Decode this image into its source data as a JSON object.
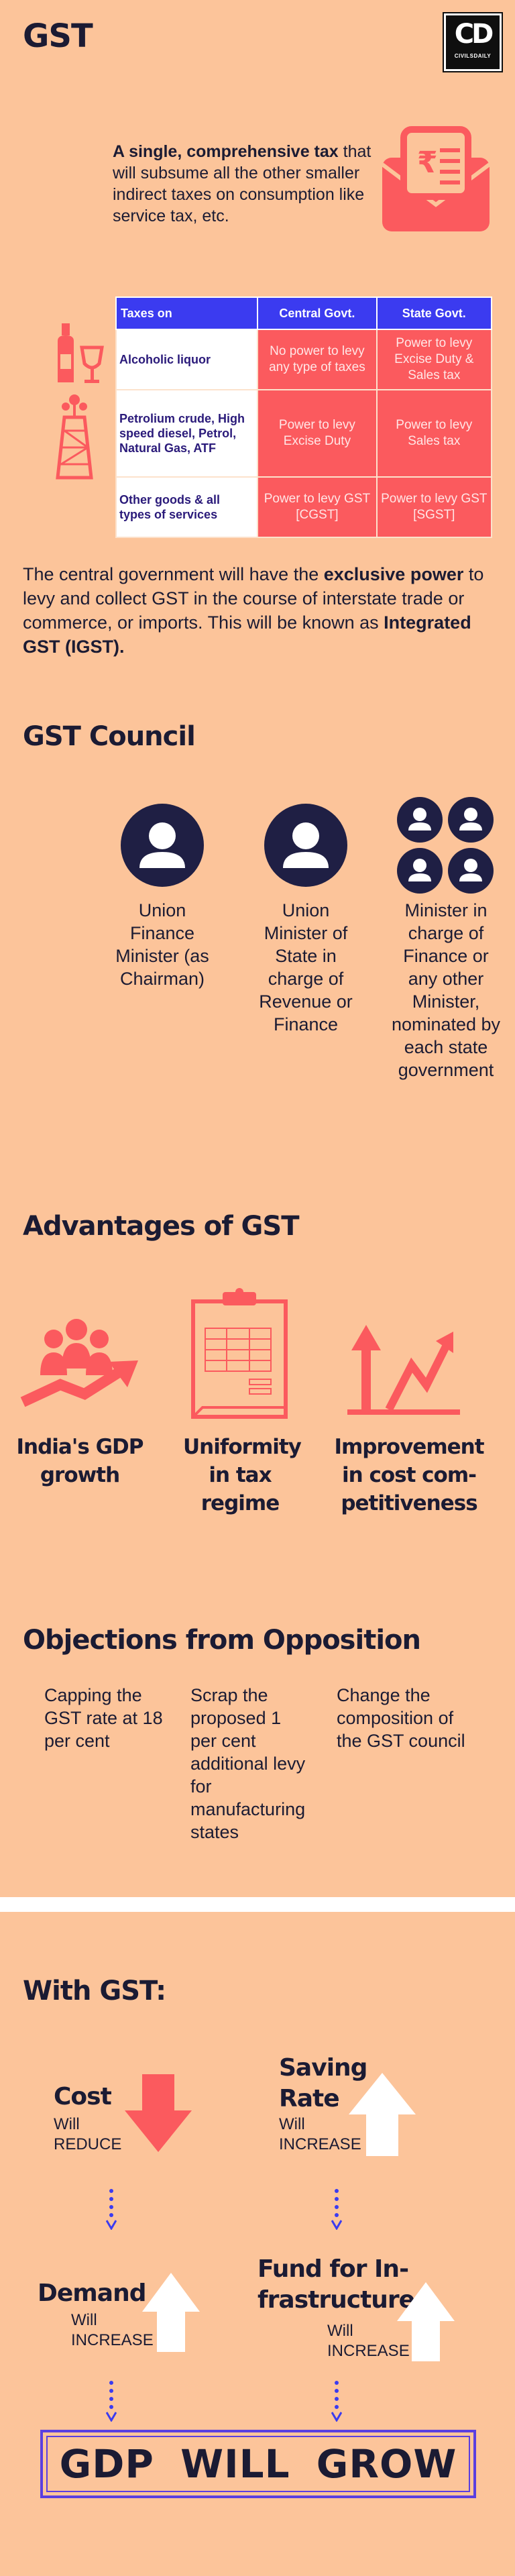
{
  "header": {
    "title": "GST",
    "logo_text": "CD",
    "logo_subtext": "CIVILSDAILY"
  },
  "intro": {
    "bold": "A single, comprehensive tax",
    "rest": " that will subsume all the other smaller indirect taxes on consumption like service tax, etc."
  },
  "tax_table": {
    "headers": [
      "Taxes on",
      "Central Govt.",
      "State Govt."
    ],
    "rows": [
      {
        "label": "Alcoholic liquor",
        "central": "No power to levy any type of taxes",
        "state": "Power to levy Excise Duty & Sales tax"
      },
      {
        "label": "Petrolium crude, High speed diesel, Petrol, Natural Gas, ATF",
        "central": "Power to levy Excise Duty",
        "state": "Power to levy Sales tax"
      },
      {
        "label": "Other goods & all types of services",
        "central": "Power to levy GST [CGST]",
        "state": "Power to levy GST [SGST]"
      }
    ]
  },
  "igst": {
    "part1": "The central government will have the ",
    "bold1": "exclusive power",
    "part2": " to levy and collect GST in the course of interstate trade or commerce, or imports. This will be known as ",
    "bold2": "Integrated GST (IGST)."
  },
  "council": {
    "title": "GST Council",
    "members": [
      "Union Finance Minister (as Chairman)",
      "Union Minister of State in charge of Revenue or Finance",
      "Minister in charge of Finance or any other Minister, nominated by each state government"
    ]
  },
  "advantages": {
    "title": "Advantages of GST",
    "items": [
      "India's GDP growth",
      "Uniformity in tax regime",
      "Improvement in cost com-petitiveness"
    ]
  },
  "objections": {
    "title": "Objections from Opposition",
    "items": [
      "Capping the GST rate at 18 per cent",
      "Scrap the proposed 1 per cent additional levy for manufacturing states",
      "Change the composition of the GST council"
    ]
  },
  "with_gst": {
    "title": "With GST:",
    "cost": {
      "title": "Cost",
      "will": "Will",
      "effect": "REDUCE"
    },
    "saving": {
      "title": "Saving Rate",
      "will": "Will",
      "effect": "INCREASE"
    },
    "demand": {
      "title": "Demand",
      "will": "Will",
      "effect": "INCREASE"
    },
    "fund": {
      "title": "Fund for In-frastructure",
      "will": "Will",
      "effect": "INCREASE"
    },
    "conclusion": "GDP WILL GROW"
  },
  "colors": {
    "background": "#fcc49a",
    "accent_red": "#fb5a5e",
    "header_blue": "#3b3bf0",
    "dark": "#1b1b33"
  }
}
